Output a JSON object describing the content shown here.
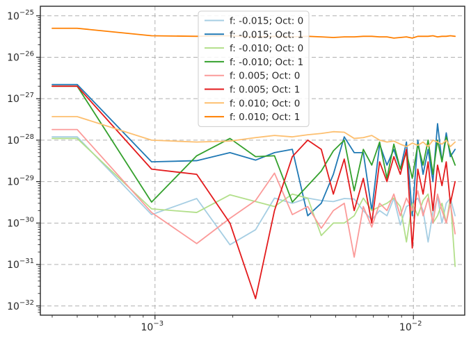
{
  "chart_data": {
    "type": "line",
    "title": "",
    "xlabel": "",
    "ylabel": "",
    "xscale": "log",
    "yscale": "log",
    "xlim": [
      0.00036,
      0.0158
    ],
    "ylim": [
      6e-33,
      1.7e-25
    ],
    "grid": true,
    "legend_position": "upper-center",
    "x_tick_labels": [
      {
        "value": 0.001,
        "base": "10",
        "exp": "−3"
      },
      {
        "value": 0.01,
        "base": "10",
        "exp": "−2"
      }
    ],
    "y_tick_labels": [
      {
        "value": 1e-25,
        "base": "10",
        "exp": "−25"
      },
      {
        "value": 1e-26,
        "base": "10",
        "exp": "−26"
      },
      {
        "value": 1e-27,
        "base": "10",
        "exp": "−27"
      },
      {
        "value": 1e-28,
        "base": "10",
        "exp": "−28"
      },
      {
        "value": 1e-29,
        "base": "10",
        "exp": "−29"
      },
      {
        "value": 1e-30,
        "base": "10",
        "exp": "−30"
      },
      {
        "value": 1e-31,
        "base": "10",
        "exp": "−31"
      },
      {
        "value": 1e-32,
        "base": "10",
        "exp": "−32"
      }
    ],
    "series": [
      {
        "name": "f: -0.015; Oct: 0",
        "color": "#a6cee3",
        "x": [
          0.0004,
          0.0005,
          0.00097,
          0.00145,
          0.00195,
          0.00245,
          0.0029,
          0.0034,
          0.0039,
          0.0044,
          0.0049,
          0.0054,
          0.0059,
          0.0064,
          0.0069,
          0.0074,
          0.0079,
          0.0084,
          0.0089,
          0.0094,
          0.0099,
          0.0104,
          0.0109,
          0.0114,
          0.0119,
          0.0124,
          0.0129,
          0.0134,
          0.0139,
          0.0145
        ],
        "y": [
          1.2e-28,
          1.2e-28,
          1.6e-30,
          3.9e-30,
          3e-31,
          6.9e-31,
          4e-30,
          3e-30,
          4e-30,
          3.5e-30,
          3.3e-30,
          3.9e-30,
          3.8e-30,
          2e-30,
          1.2e-30,
          2e-30,
          1.5e-30,
          4e-30,
          9e-31,
          2.5e-30,
          3e-30,
          4e-30,
          2e-30,
          3.5e-31,
          1.8e-30,
          4.2e-30,
          1e-30,
          3e-30,
          4e-30,
          1.5e-30
        ]
      },
      {
        "name": "f: -0.015; Oct: 1",
        "color": "#1f78b4",
        "x": [
          0.0004,
          0.0005,
          0.00097,
          0.00145,
          0.00195,
          0.00245,
          0.0029,
          0.0034,
          0.0039,
          0.0044,
          0.0049,
          0.0054,
          0.0059,
          0.0064,
          0.0069,
          0.0074,
          0.0079,
          0.0084,
          0.0089,
          0.0094,
          0.0099,
          0.0104,
          0.0109,
          0.0114,
          0.0119,
          0.0124,
          0.0129,
          0.0134,
          0.0139,
          0.0145
        ],
        "y": [
          2.2e-27,
          2.2e-27,
          3e-29,
          3.2e-29,
          5e-29,
          3.3e-29,
          5e-29,
          6e-29,
          1.5e-30,
          3e-30,
          1.5e-29,
          1.2e-28,
          5e-29,
          5e-29,
          2e-30,
          8e-29,
          2.5e-29,
          6e-29,
          2e-29,
          9e-29,
          1.5e-30,
          1e-28,
          1.5e-29,
          6e-29,
          1e-29,
          2.5e-28,
          3e-29,
          1.5e-28,
          4e-29,
          6e-29
        ]
      },
      {
        "name": "f: -0.010; Oct: 0",
        "color": "#b2df8a",
        "x": [
          0.0004,
          0.0005,
          0.00097,
          0.00145,
          0.00195,
          0.00245,
          0.0029,
          0.0034,
          0.0039,
          0.0044,
          0.0049,
          0.0054,
          0.0059,
          0.0064,
          0.0069,
          0.0074,
          0.0079,
          0.0084,
          0.0089,
          0.0094,
          0.0099,
          0.0104,
          0.0109,
          0.0114,
          0.0119,
          0.0124,
          0.0129,
          0.0134,
          0.0139,
          0.0145
        ],
        "y": [
          1.1e-28,
          1.1e-28,
          2.2e-30,
          1.8e-30,
          4.8e-30,
          3.3e-30,
          2.5e-30,
          5e-30,
          4e-30,
          5e-31,
          1e-30,
          1e-30,
          1.5e-30,
          4e-30,
          2e-30,
          2.5e-30,
          3e-30,
          4e-30,
          2.5e-30,
          3.5e-31,
          3e-30,
          1.5e-30,
          3.5e-30,
          5e-30,
          1e-30,
          1.5e-30,
          3e-30,
          1e-30,
          4e-30,
          9e-32
        ]
      },
      {
        "name": "f: -0.010; Oct: 1",
        "color": "#33a02c",
        "x": [
          0.0004,
          0.0005,
          0.00097,
          0.00145,
          0.00195,
          0.00245,
          0.0029,
          0.0034,
          0.0039,
          0.0044,
          0.0049,
          0.0054,
          0.0059,
          0.0064,
          0.0069,
          0.0074,
          0.0079,
          0.0084,
          0.0089,
          0.0094,
          0.0099,
          0.0104,
          0.0109,
          0.0114,
          0.0119,
          0.0124,
          0.0129,
          0.0134,
          0.0139,
          0.0145
        ],
        "y": [
          2e-27,
          2e-27,
          3.2e-30,
          4.2e-29,
          1.1e-28,
          4e-29,
          4.2e-29,
          3.2e-30,
          8e-30,
          1.8e-29,
          5.5e-29,
          1e-28,
          6e-30,
          6e-29,
          2.5e-29,
          9e-29,
          1.2e-29,
          8e-29,
          2e-29,
          5e-29,
          1.2e-29,
          8e-29,
          2.5e-29,
          1e-28,
          1.5e-29,
          1e-28,
          3e-29,
          1.2e-28,
          5e-29,
          2.5e-29
        ]
      },
      {
        "name": "f: 0.005; Oct: 0",
        "color": "#fb9a99",
        "x": [
          0.0004,
          0.0005,
          0.00097,
          0.00145,
          0.00195,
          0.00245,
          0.0029,
          0.0034,
          0.0039,
          0.0044,
          0.0049,
          0.0054,
          0.0059,
          0.0064,
          0.0069,
          0.0074,
          0.0079,
          0.0084,
          0.0089,
          0.0094,
          0.0099,
          0.0104,
          0.0109,
          0.0114,
          0.0119,
          0.0124,
          0.0129,
          0.0134,
          0.0139,
          0.0145
        ],
        "y": [
          1.8e-28,
          1.8e-28,
          1.8e-30,
          3.2e-31,
          1.3e-30,
          3.5e-30,
          1.6e-29,
          1.6e-30,
          2.5e-30,
          7.5e-31,
          2e-30,
          3e-30,
          1.5e-31,
          2.5e-30,
          8e-31,
          3e-30,
          2e-30,
          5e-30,
          1.5e-30,
          4e-30,
          2e-30,
          6e-30,
          1.5e-30,
          4e-30,
          1e-30,
          5e-30,
          2e-30,
          1e-30,
          3e-30,
          5.5e-31
        ]
      },
      {
        "name": "f: 0.005; Oct: 1",
        "color": "#e31a1c",
        "x": [
          0.0004,
          0.0005,
          0.00097,
          0.00145,
          0.00195,
          0.00245,
          0.0029,
          0.0034,
          0.0039,
          0.0044,
          0.0049,
          0.0054,
          0.0059,
          0.0064,
          0.0069,
          0.0074,
          0.0079,
          0.0084,
          0.0089,
          0.0094,
          0.0099,
          0.0104,
          0.0109,
          0.0114,
          0.0119,
          0.0124,
          0.0129,
          0.0134,
          0.0139,
          0.0145
        ],
        "y": [
          2e-27,
          2e-27,
          2e-29,
          1.5e-29,
          1e-30,
          1.5e-32,
          2e-30,
          4e-29,
          1e-28,
          6e-29,
          5e-30,
          3.5e-29,
          2e-30,
          1.2e-29,
          1e-30,
          3e-29,
          1e-29,
          4e-29,
          1.5e-29,
          6e-29,
          2.5e-31,
          2e-29,
          5e-30,
          3e-29,
          2e-30,
          2.5e-29,
          8e-30,
          3e-29,
          3e-30,
          1e-29
        ]
      },
      {
        "name": "f: 0.010; Oct: 0",
        "color": "#fdbf6f",
        "x": [
          0.0004,
          0.0005,
          0.00097,
          0.00145,
          0.00195,
          0.00245,
          0.0029,
          0.0034,
          0.0039,
          0.0044,
          0.0049,
          0.0054,
          0.0059,
          0.0064,
          0.0069,
          0.0074,
          0.0079,
          0.0084,
          0.0089,
          0.0094,
          0.0099,
          0.0104,
          0.0109,
          0.0114,
          0.0119,
          0.0124,
          0.0129,
          0.0134,
          0.0139,
          0.0145
        ],
        "y": [
          3.7e-28,
          3.7e-28,
          1e-28,
          9e-29,
          9.5e-29,
          1.15e-28,
          1.3e-28,
          1.2e-28,
          1.35e-28,
          1.45e-28,
          1.6e-28,
          1.55e-28,
          1.1e-28,
          1.15e-28,
          1.3e-28,
          1e-28,
          9e-29,
          9.5e-29,
          8e-29,
          7e-29,
          8.5e-29,
          7.5e-29,
          9e-29,
          7e-29,
          1e-28,
          9e-29,
          8e-29,
          1e-28,
          7e-29,
          9e-29
        ]
      },
      {
        "name": "f: 0.010; Oct: 1",
        "color": "#ff7f00",
        "x": [
          0.0004,
          0.0005,
          0.00097,
          0.00145,
          0.00195,
          0.00245,
          0.0029,
          0.0034,
          0.0039,
          0.0044,
          0.0049,
          0.0054,
          0.0059,
          0.0064,
          0.0069,
          0.0074,
          0.0079,
          0.0084,
          0.0089,
          0.0094,
          0.0099,
          0.0104,
          0.0109,
          0.0114,
          0.0119,
          0.0124,
          0.0129,
          0.0134,
          0.0139,
          0.0145
        ],
        "y": [
          5e-26,
          5e-26,
          3.3e-26,
          3.2e-26,
          3.3e-26,
          3.1e-26,
          3.2e-26,
          3.1e-26,
          3.2e-26,
          3.1e-26,
          3e-26,
          3.1e-26,
          3.1e-26,
          3.2e-26,
          3.2e-26,
          3.1e-26,
          3.1e-26,
          2.9e-26,
          3e-26,
          3.1e-26,
          2.9e-26,
          3.2e-26,
          3.2e-26,
          3.2e-26,
          3.3e-26,
          3.1e-26,
          3.2e-26,
          3.2e-26,
          3.3e-26,
          3.2e-26
        ]
      }
    ]
  }
}
